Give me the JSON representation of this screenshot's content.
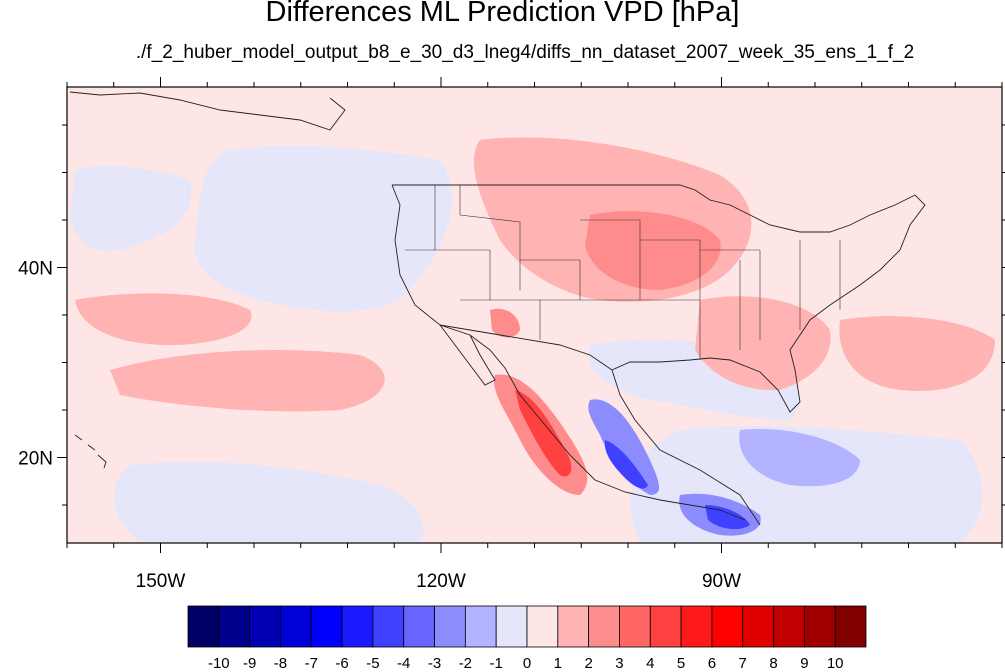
{
  "title": "Differences ML Prediction VPD [hPa]",
  "subtitle": "./f_2_huber_model_output_b8_e_30_d3_lneg4/diffs_nn_dataset_2007_week_35_ens_1_f_2",
  "map": {
    "x_ticks": [
      {
        "lon": -150,
        "label": "150W"
      },
      {
        "lon": -120,
        "label": "120W"
      },
      {
        "lon": -90,
        "label": "90W"
      }
    ],
    "y_ticks": [
      {
        "lat": 40,
        "label": "40N"
      },
      {
        "lat": 20,
        "label": "20N"
      }
    ],
    "lon_range": [
      -160,
      -60
    ],
    "lat_range": [
      11,
      59
    ],
    "background_value": 0.5
  },
  "colorbar": {
    "levels": [
      -10,
      -9,
      -8,
      -7,
      -6,
      -5,
      -4,
      -3,
      -2,
      -1,
      0,
      1,
      2,
      3,
      4,
      5,
      6,
      7,
      8,
      9,
      10
    ],
    "labels": [
      "-10",
      "-9",
      "-8",
      "-7",
      "-6",
      "-5",
      "-4",
      "-3",
      "-2",
      "-1",
      "0",
      "1",
      "2",
      "3",
      "4",
      "5",
      "6",
      "7",
      "8",
      "9",
      "10"
    ],
    "colors": [
      "#000066",
      "#00008c",
      "#0000b2",
      "#0000d9",
      "#0000ff",
      "#1a1aff",
      "#4040ff",
      "#6666ff",
      "#8c8cff",
      "#b3b3ff",
      "#e6e6fa",
      "#ffe6e6",
      "#ffb3b3",
      "#ff8c8c",
      "#ff6666",
      "#ff4040",
      "#ff1a1a",
      "#ff0000",
      "#e00000",
      "#c00000",
      "#a00000",
      "#800000"
    ]
  }
}
